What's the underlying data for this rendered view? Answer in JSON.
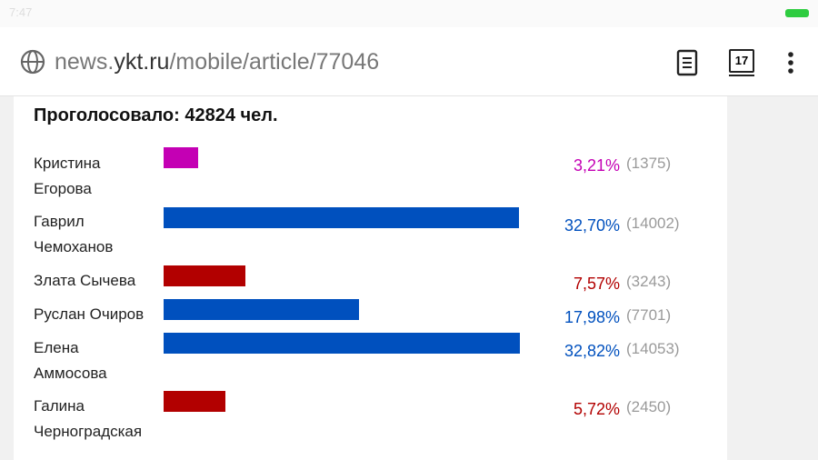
{
  "status_bar": {
    "time": "7:47"
  },
  "browser": {
    "url_prefix": "news.",
    "url_host": "ykt.ru",
    "url_path": "/mobile/article/77046",
    "tab_count": "17"
  },
  "chart_data": {
    "type": "bar",
    "orientation": "horizontal",
    "title": "Проголосовало: 42824 чел.",
    "categories": [
      "Кристина Егорова",
      "Гаврил Чемоханов",
      "Злата Сычева",
      "Руслан Очиров",
      "Елена Аммосова",
      "Галина Черноградская"
    ],
    "values": [
      3.21,
      32.7,
      7.57,
      17.98,
      32.82,
      5.72
    ],
    "value_labels": [
      "3,21%",
      "32,70%",
      "7,57%",
      "17,98%",
      "32,82%",
      "5,72%"
    ],
    "count_labels": [
      "(1375)",
      "(14002)",
      "(3243)",
      "(7701)",
      "(14053)",
      "(2450)"
    ],
    "colors": [
      "#c400b4",
      "#0050be",
      "#b20000",
      "#0050be",
      "#0050be",
      "#b20000"
    ]
  }
}
